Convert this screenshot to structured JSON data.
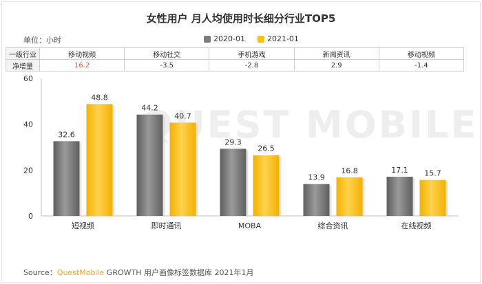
{
  "title": "女性用户 月人均使用时长细分行业TOP5",
  "unit": "单位：小时",
  "legend": [
    {
      "label": "2020-01",
      "color": "#7d7d7d"
    },
    {
      "label": "2021-01",
      "color": "#ffc000"
    }
  ],
  "table": {
    "row1_head": "一级行业",
    "row2_head": "净增量",
    "industries": [
      "移动视频",
      "移动社交",
      "手机游戏",
      "新闻资讯",
      "移动视频"
    ],
    "net_increase": [
      "16.2",
      "-3.5",
      "-2.8",
      "2.9",
      "-1.4"
    ],
    "highlight_color": "#e84b3c"
  },
  "watermark": "QUEST MOBILE",
  "source": {
    "prefix": "Source：",
    "brand": "QuestMobile",
    "rest": " GROWTH 用户画像标签数据库 2021年1月"
  },
  "chart_data": {
    "type": "bar",
    "title": "女性用户 月人均使用时长细分行业TOP5",
    "categories": [
      "短视频",
      "即时通讯",
      "MOBA",
      "综合资讯",
      "在线视频"
    ],
    "series": [
      {
        "name": "2020-01",
        "values": [
          32.6,
          44.2,
          29.3,
          13.9,
          17.1
        ],
        "color": "#7d7d7d"
      },
      {
        "name": "2021-01",
        "values": [
          48.8,
          40.7,
          26.5,
          16.8,
          15.7
        ],
        "color": "#ffc000"
      }
    ],
    "ylim": [
      0,
      60
    ],
    "yticks": [
      0,
      20,
      40,
      60
    ],
    "ylabel": "单位：小时",
    "grid": false,
    "legend": "top"
  }
}
